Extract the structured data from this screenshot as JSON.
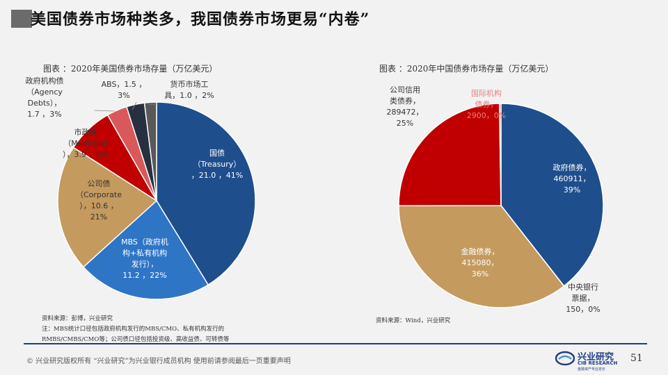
{
  "title": "美国债券市场种类多，我国债券市场更易“内卷”",
  "chart_data": [
    {
      "type": "pie",
      "title": "图表 ：2020年美国债券市场存量（万亿美元）",
      "unit": "万亿美元",
      "slices": [
        {
          "name": "国债（Treasury）",
          "value": 21.0,
          "pct": "41%",
          "color": "#1f4e8c",
          "label": [
            "国债",
            "（Treasury）",
            "，21.0 ，41%"
          ]
        },
        {
          "name": "MBS（政府机构+私有机构发行）",
          "value": 11.2,
          "pct": "22%",
          "color": "#2e75c6",
          "label": [
            "MBS（政府机",
            "构+私有机构",
            "发行），",
            "11.2 ，22%"
          ]
        },
        {
          "name": "公司债（Corporate）",
          "value": 10.6,
          "pct": "21%",
          "color": "#c49a5e",
          "label": [
            "公司债",
            "（Corporate",
            "），10.6 ，",
            "21%"
          ]
        },
        {
          "name": "市政债（Municipal）",
          "value": 3.9,
          "pct": "8%",
          "color": "#c00000",
          "label": [
            "市政债",
            "（Municipal",
            "），3.9 ，8%"
          ]
        },
        {
          "name": "政府机构债（Agency Debts）",
          "value": 1.7,
          "pct": "3%",
          "color": "#d9595b",
          "label": [
            "政府机构债",
            "（Agency",
            "Debts），",
            "1.7 ，3%"
          ]
        },
        {
          "name": "ABS",
          "value": 1.5,
          "pct": "3%",
          "color": "#263040",
          "label": [
            "ABS，1.5 ，",
            "3%"
          ]
        },
        {
          "name": "货币市场工具",
          "value": 1.0,
          "pct": "2%",
          "color": "#595959",
          "label": [
            "货币市场工",
            "具，1.0 ，2%"
          ]
        }
      ]
    },
    {
      "type": "pie",
      "title": "图表 ：2020年中国债券市场存量（万亿美元）",
      "slices": [
        {
          "name": "政府债券",
          "value": 460911,
          "pct": "39%",
          "color": "#1f4e8c",
          "label": [
            "政府债券，",
            "460911，",
            "39%"
          ]
        },
        {
          "name": "中央银行票据",
          "value": 150,
          "pct": "0%",
          "color": "#2e75c6",
          "label": [
            "中央银行",
            "票据，",
            "150，0%"
          ]
        },
        {
          "name": "金融债券",
          "value": 415080,
          "pct": "36%",
          "color": "#c49a5e",
          "label": [
            "金融债券，",
            "415080，",
            "36%"
          ]
        },
        {
          "name": "公司信用类债券",
          "value": 289472,
          "pct": "25%",
          "color": "#c00000",
          "label": [
            "公司信用",
            "类债券，",
            "289472，",
            "25%"
          ]
        },
        {
          "name": "国际机构债券",
          "value": 2900,
          "pct": "0%",
          "color": "#d9595b",
          "label": [
            "国际机构",
            "债券，",
            "2900，0%"
          ]
        }
      ]
    }
  ],
  "notes": {
    "left_source": "资料来源：彭博，兴业研究",
    "left_note1": "注：MBS统计口径包括政府机构发行的MBS/CMO、私有机构发行的",
    "left_note2": "RMBS/CMBS/CMO等；公司债口径包括投资级、高收益债、可转债等",
    "right_source": "资料来源：Wind，兴业研究"
  },
  "footer": {
    "text": "©  兴业研究版权所有    “兴业研究”为兴业银行成员机构    使用前请参阅最后一页重要声明",
    "page": "51",
    "logo_cn": "兴业研究",
    "logo_en": "CIB RESEARCH",
    "logo_sub": "金融资产专业定价"
  }
}
